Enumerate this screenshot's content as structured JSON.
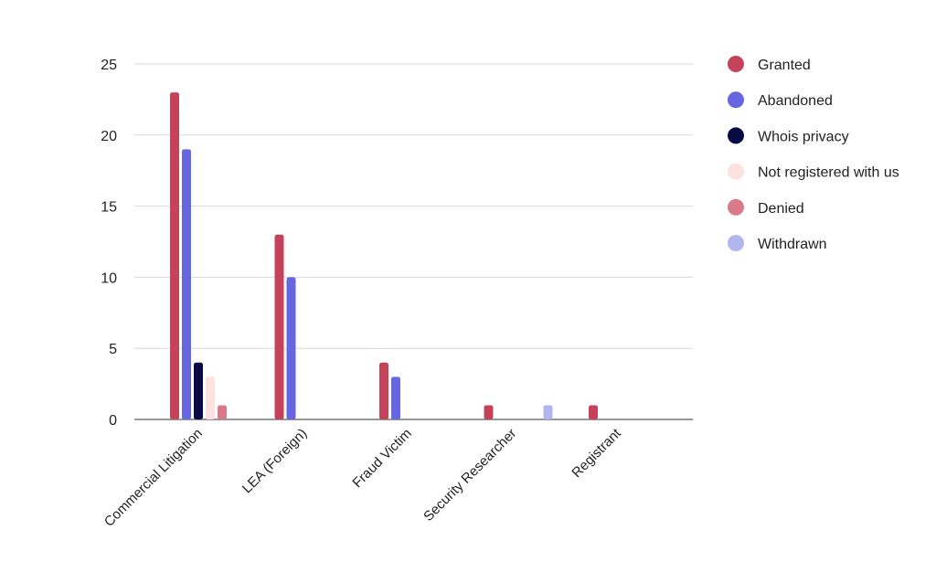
{
  "chart_data": {
    "type": "bar",
    "categories": [
      "Commercial Litigation",
      "LEA (Foreign)",
      "Fraud Victim",
      "Security Researcher",
      "Registrant"
    ],
    "series": [
      {
        "name": "Granted",
        "color": "#c5435a",
        "values": [
          23,
          13,
          4,
          1,
          1
        ]
      },
      {
        "name": "Abandoned",
        "color": "#6666e0",
        "values": [
          19,
          10,
          3,
          0,
          0
        ]
      },
      {
        "name": "Whois privacy",
        "color": "#0a0a45",
        "values": [
          4,
          0,
          0,
          0,
          0
        ]
      },
      {
        "name": "Not registered with us",
        "color": "#fde0e0",
        "values": [
          3,
          0,
          0,
          0,
          0
        ]
      },
      {
        "name": "Denied",
        "color": "#d97a88",
        "values": [
          1,
          0,
          0,
          0,
          0
        ]
      },
      {
        "name": "Withdrawn",
        "color": "#b3b6ee",
        "values": [
          0,
          0,
          0,
          1,
          0
        ]
      }
    ],
    "ylim": [
      0,
      25
    ],
    "yticks": [
      0,
      5,
      10,
      15,
      20,
      25
    ],
    "grid": true,
    "legend_position": "right",
    "title": "",
    "xlabel": "",
    "ylabel": ""
  }
}
